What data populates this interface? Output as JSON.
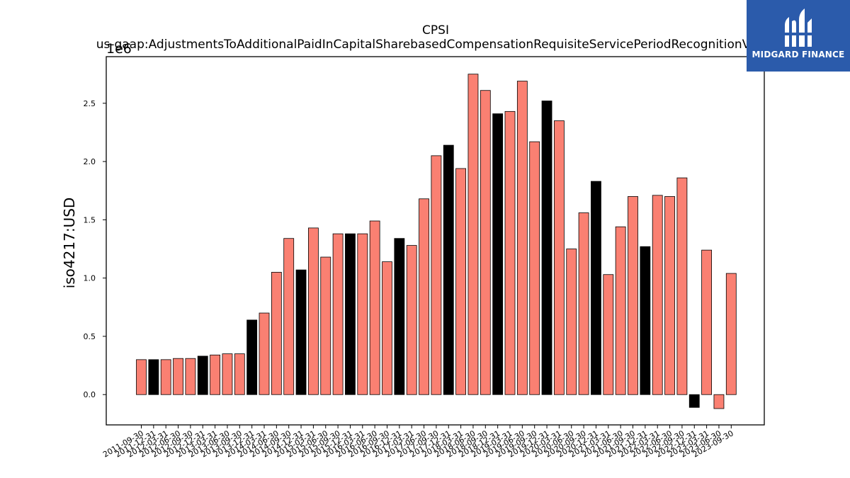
{
  "chart_data": {
    "type": "bar",
    "title": "CPSI",
    "subtitle": "us-gaap:AdjustmentsToAdditionalPaidInCapitalSharebasedCompensationRequisiteServicePeriodRecognitionValue",
    "ylabel": "iso4217:USD",
    "xlabel": "",
    "scale_label": "1e6",
    "ylim": [
      -0.26,
      2.9
    ],
    "yticks": [
      "0.0",
      "0.5",
      "1.0",
      "1.5",
      "2.0",
      "2.5"
    ],
    "grid": false,
    "colors": {
      "quarter": "#fa8072",
      "year_end": "#000000"
    },
    "categories": [
      "2011-09-30",
      "2011-12-31",
      "2012-03-31",
      "2012-06-30",
      "2012-09-30",
      "2012-12-31",
      "2013-03-31",
      "2013-06-30",
      "2013-09-30",
      "2013-12-31",
      "2014-03-31",
      "2014-06-30",
      "2014-09-30",
      "2014-12-31",
      "2015-03-31",
      "2015-06-30",
      "2015-09-30",
      "2015-12-31",
      "2016-03-31",
      "2016-06-30",
      "2016-09-30",
      "2016-12-31",
      "2017-03-31",
      "2017-06-30",
      "2017-09-30",
      "2017-12-31",
      "2018-03-31",
      "2018-06-30",
      "2018-09-30",
      "2018-12-31",
      "2019-03-31",
      "2019-06-30",
      "2019-09-30",
      "2019-12-31",
      "2020-03-31",
      "2020-06-30",
      "2020-09-30",
      "2020-12-31",
      "2021-03-31",
      "2021-06-30",
      "2021-09-30",
      "2021-12-31",
      "2022-03-31",
      "2022-06-30",
      "2022-09-30",
      "2022-12-31",
      "2023-03-31",
      "2023-06-30",
      "2023-09-30"
    ],
    "values": [
      0.3,
      0.3,
      0.3,
      0.31,
      0.31,
      0.33,
      0.34,
      0.35,
      0.35,
      0.64,
      0.7,
      1.05,
      1.34,
      1.07,
      1.43,
      1.18,
      1.38,
      1.38,
      1.38,
      1.49,
      1.14,
      1.34,
      1.28,
      1.68,
      2.05,
      2.14,
      1.94,
      2.75,
      2.61,
      2.41,
      2.43,
      2.69,
      2.17,
      2.52,
      2.35,
      1.25,
      1.56,
      1.83,
      1.03,
      1.44,
      1.7,
      1.27,
      1.71,
      1.7,
      1.86,
      -0.11,
      1.24,
      -0.12,
      1.04
    ],
    "year_end_flags": [
      false,
      true,
      false,
      false,
      false,
      true,
      false,
      false,
      false,
      true,
      false,
      false,
      false,
      true,
      false,
      false,
      false,
      true,
      false,
      false,
      false,
      true,
      false,
      false,
      false,
      true,
      false,
      false,
      false,
      true,
      false,
      false,
      false,
      true,
      false,
      false,
      false,
      true,
      false,
      false,
      false,
      true,
      false,
      false,
      false,
      true,
      false,
      false,
      false
    ]
  },
  "logo": {
    "text": "MIDGARD FINANCE",
    "icon": "midgard-m-logo-icon",
    "background": "#2b5bab"
  }
}
